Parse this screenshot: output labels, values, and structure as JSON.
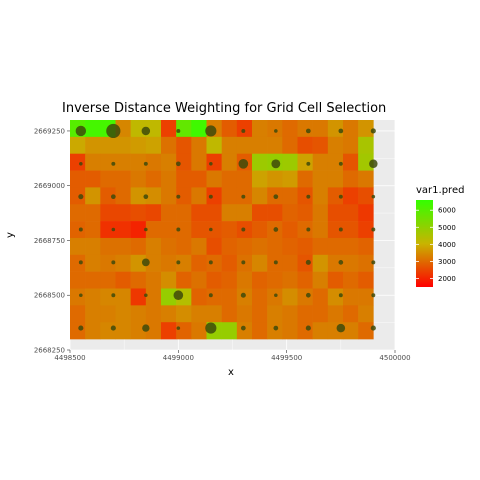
{
  "chart_data": {
    "type": "heatmap",
    "title": "Inverse Distance Weighting for Grid Cell Selection",
    "xlabel": "x",
    "ylabel": "y",
    "xlim": [
      4498500,
      4500000
    ],
    "ylim": [
      2668250,
      2669300
    ],
    "x_ticks": [
      4498500,
      4499000,
      4499500,
      4500000
    ],
    "x_tick_labels": [
      "4498500",
      "4499000",
      "4499500",
      "4500000"
    ],
    "y_ticks": [
      2668250,
      2668500,
      2668750,
      2669000,
      2669250
    ],
    "y_tick_labels": [
      "2668250",
      "2668500",
      "2668750",
      "2669000",
      "2669250"
    ],
    "grid": true,
    "cell_x_range": [
      4498500,
      4499900
    ],
    "cell_y_range": [
      2668300,
      2669300
    ],
    "rows_top_to_bottom": [
      [
        6000,
        6300,
        6300,
        3400,
        4200,
        4200,
        2400,
        5800,
        6400,
        3300,
        2800,
        2400,
        3300,
        3200,
        3000,
        3200,
        3200,
        3600,
        3200,
        3600
      ],
      [
        3900,
        3600,
        3600,
        3600,
        3700,
        3800,
        3100,
        2700,
        3200,
        4200,
        3300,
        3300,
        3300,
        3300,
        3000,
        2600,
        2700,
        3300,
        3200,
        4600
      ],
      [
        2400,
        3300,
        3300,
        3300,
        3300,
        3200,
        3300,
        2700,
        3200,
        2400,
        3300,
        2800,
        4800,
        4900,
        4800,
        3800,
        3300,
        3300,
        2700,
        4700
      ],
      [
        2800,
        2800,
        3000,
        3000,
        3200,
        3000,
        3200,
        2800,
        2800,
        3200,
        3000,
        3000,
        3800,
        3600,
        3700,
        3000,
        3300,
        3300,
        3000,
        3200
      ],
      [
        2800,
        3600,
        2800,
        3000,
        3600,
        3500,
        3200,
        2800,
        3200,
        2400,
        3000,
        3000,
        3400,
        3000,
        3000,
        2700,
        3300,
        2800,
        2400,
        2600
      ],
      [
        3000,
        3000,
        2500,
        2500,
        2600,
        2500,
        3000,
        3000,
        2600,
        2600,
        3300,
        3300,
        2600,
        2600,
        2900,
        2800,
        3200,
        2600,
        2600,
        2300
      ],
      [
        2900,
        3000,
        2200,
        2200,
        2000,
        3000,
        3000,
        3000,
        2700,
        2700,
        2800,
        2600,
        2800,
        3000,
        2800,
        3000,
        3200,
        2700,
        2700,
        2400
      ],
      [
        3300,
        3300,
        3100,
        3100,
        3000,
        3300,
        3100,
        3000,
        3200,
        2600,
        2900,
        3000,
        3100,
        3000,
        2900,
        2800,
        3000,
        3000,
        3000,
        2900
      ],
      [
        3000,
        3300,
        3200,
        3300,
        3600,
        3300,
        3200,
        3300,
        2900,
        3000,
        2800,
        3100,
        3400,
        3000,
        3000,
        2700,
        3600,
        3200,
        3200,
        3100
      ],
      [
        3000,
        3000,
        3000,
        2800,
        3000,
        3200,
        3500,
        2900,
        3100,
        2800,
        2900,
        3200,
        2900,
        3000,
        3100,
        2900,
        3300,
        2800,
        3000,
        2800
      ],
      [
        3200,
        3300,
        3400,
        3400,
        2300,
        3200,
        4900,
        4400,
        2900,
        3000,
        3000,
        3300,
        3000,
        3200,
        3500,
        3200,
        3000,
        3500,
        3200,
        3200
      ],
      [
        3000,
        3300,
        3300,
        3400,
        3300,
        3200,
        3300,
        3500,
        3300,
        3300,
        3000,
        3200,
        3000,
        3300,
        3200,
        3000,
        3000,
        3200,
        3000,
        3300
      ],
      [
        3000,
        3300,
        3400,
        3400,
        3300,
        3200,
        2400,
        2900,
        3200,
        4900,
        4900,
        3300,
        3000,
        3300,
        3200,
        3000,
        3300,
        3300,
        3300,
        3000
      ]
    ],
    "points": [
      {
        "x": 4498550,
        "y": 2669250,
        "size": 2
      },
      {
        "x": 4498700,
        "y": 2669250,
        "size": 3
      },
      {
        "x": 4498850,
        "y": 2669250,
        "size": 1.5
      },
      {
        "x": 4499000,
        "y": 2669250,
        "size": 0.3
      },
      {
        "x": 4499150,
        "y": 2669250,
        "size": 2.2
      },
      {
        "x": 4499300,
        "y": 2669250,
        "size": 0.3
      },
      {
        "x": 4499450,
        "y": 2669250,
        "size": 0.2
      },
      {
        "x": 4499600,
        "y": 2669250,
        "size": 0.5
      },
      {
        "x": 4499750,
        "y": 2669250,
        "size": 0.5
      },
      {
        "x": 4499900,
        "y": 2669250,
        "size": 0.6
      },
      {
        "x": 4498550,
        "y": 2669100,
        "size": 0.2
      },
      {
        "x": 4498700,
        "y": 2669100,
        "size": 0.3
      },
      {
        "x": 4498850,
        "y": 2669100,
        "size": 0.3
      },
      {
        "x": 4499000,
        "y": 2669100,
        "size": 0.5
      },
      {
        "x": 4499150,
        "y": 2669100,
        "size": 0.2
      },
      {
        "x": 4499300,
        "y": 2669100,
        "size": 1.8
      },
      {
        "x": 4499450,
        "y": 2669100,
        "size": 1.6
      },
      {
        "x": 4499600,
        "y": 2669100,
        "size": 0.3
      },
      {
        "x": 4499750,
        "y": 2669100,
        "size": 0.3
      },
      {
        "x": 4499900,
        "y": 2669100,
        "size": 1.5
      },
      {
        "x": 4498550,
        "y": 2668950,
        "size": 0.6
      },
      {
        "x": 4498700,
        "y": 2668950,
        "size": 0.5
      },
      {
        "x": 4498850,
        "y": 2668950,
        "size": 0.5
      },
      {
        "x": 4499000,
        "y": 2668950,
        "size": 0.3
      },
      {
        "x": 4499150,
        "y": 2668950,
        "size": 0.3
      },
      {
        "x": 4499300,
        "y": 2668950,
        "size": 0.3
      },
      {
        "x": 4499450,
        "y": 2668950,
        "size": 0.5
      },
      {
        "x": 4499600,
        "y": 2668950,
        "size": 0.3
      },
      {
        "x": 4499750,
        "y": 2668950,
        "size": 0.3
      },
      {
        "x": 4499900,
        "y": 2668950,
        "size": 0.2
      },
      {
        "x": 4498550,
        "y": 2668800,
        "size": 0.3
      },
      {
        "x": 4498700,
        "y": 2668800,
        "size": 0.2
      },
      {
        "x": 4498850,
        "y": 2668800,
        "size": 0.2
      },
      {
        "x": 4499000,
        "y": 2668800,
        "size": 0.3
      },
      {
        "x": 4499150,
        "y": 2668800,
        "size": 0.2
      },
      {
        "x": 4499300,
        "y": 2668800,
        "size": 0.3
      },
      {
        "x": 4499450,
        "y": 2668800,
        "size": 0.5
      },
      {
        "x": 4499600,
        "y": 2668800,
        "size": 0.3
      },
      {
        "x": 4499750,
        "y": 2668800,
        "size": 0.3
      },
      {
        "x": 4499900,
        "y": 2668800,
        "size": 0.3
      },
      {
        "x": 4498550,
        "y": 2668650,
        "size": 0.3
      },
      {
        "x": 4498700,
        "y": 2668650,
        "size": 0.3
      },
      {
        "x": 4498850,
        "y": 2668650,
        "size": 1.3
      },
      {
        "x": 4499000,
        "y": 2668650,
        "size": 0.3
      },
      {
        "x": 4499150,
        "y": 2668650,
        "size": 0.3
      },
      {
        "x": 4499300,
        "y": 2668650,
        "size": 0.3
      },
      {
        "x": 4499450,
        "y": 2668650,
        "size": 0.3
      },
      {
        "x": 4499600,
        "y": 2668650,
        "size": 0.6
      },
      {
        "x": 4499750,
        "y": 2668650,
        "size": 0.5
      },
      {
        "x": 4499900,
        "y": 2668650,
        "size": 0.3
      },
      {
        "x": 4498550,
        "y": 2668500,
        "size": 0.2
      },
      {
        "x": 4498700,
        "y": 2668500,
        "size": 0.3
      },
      {
        "x": 4498850,
        "y": 2668500,
        "size": 0.2
      },
      {
        "x": 4499000,
        "y": 2668500,
        "size": 1.8
      },
      {
        "x": 4499150,
        "y": 2668500,
        "size": 0.3
      },
      {
        "x": 4499300,
        "y": 2668500,
        "size": 0.6
      },
      {
        "x": 4499450,
        "y": 2668500,
        "size": 0.2
      },
      {
        "x": 4499600,
        "y": 2668500,
        "size": 0.5
      },
      {
        "x": 4499750,
        "y": 2668500,
        "size": 0.3
      },
      {
        "x": 4499900,
        "y": 2668500,
        "size": 0.3
      },
      {
        "x": 4498550,
        "y": 2668350,
        "size": 0.6
      },
      {
        "x": 4498700,
        "y": 2668350,
        "size": 0.6
      },
      {
        "x": 4498850,
        "y": 2668350,
        "size": 1.2
      },
      {
        "x": 4499000,
        "y": 2668350,
        "size": 0.2
      },
      {
        "x": 4499150,
        "y": 2668350,
        "size": 2.2
      },
      {
        "x": 4499300,
        "y": 2668350,
        "size": 0.5
      },
      {
        "x": 4499450,
        "y": 2668350,
        "size": 0.5
      },
      {
        "x": 4499600,
        "y": 2668350,
        "size": 0.6
      },
      {
        "x": 4499750,
        "y": 2668350,
        "size": 1.5
      },
      {
        "x": 4499900,
        "y": 2668350,
        "size": 0.6
      }
    ],
    "legend": {
      "title": "var1.pred",
      "position": "right",
      "breaks": [
        2000,
        3000,
        4000,
        5000,
        6000
      ],
      "break_labels": [
        "2000",
        "3000",
        "4000",
        "5000",
        "6000"
      ],
      "range": [
        1500,
        6600
      ],
      "colors": {
        "low": "#ff0000",
        "mid": "#c8b400",
        "high": "#33ff00"
      }
    },
    "colors": {
      "panel_background": "#ebebeb",
      "grid_line": "#ffffff",
      "point_fill": "#3d4a0a"
    }
  }
}
